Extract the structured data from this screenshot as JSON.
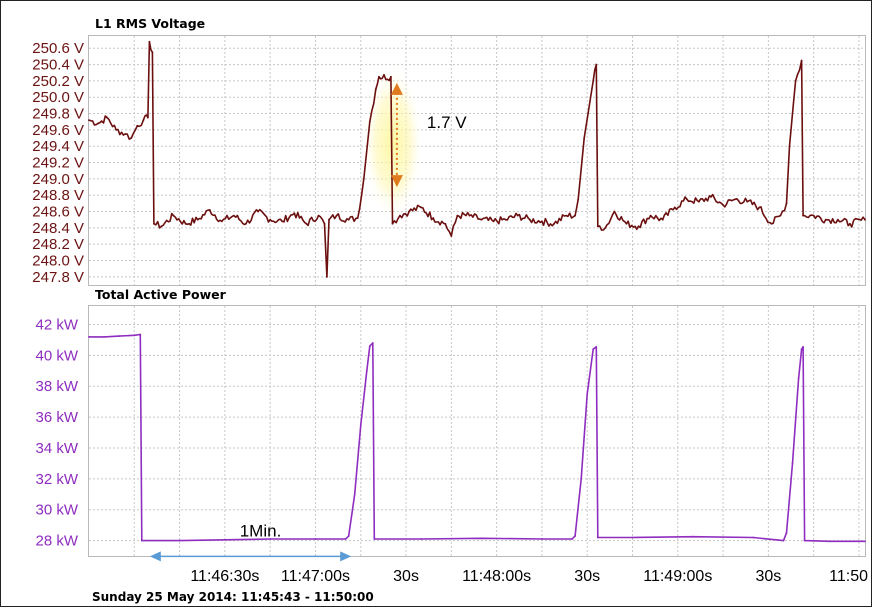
{
  "chart_data": [
    {
      "type": "line",
      "title": "L1 RMS Voltage",
      "y_tick_labels": [
        "250.6 V",
        "250.4 V",
        "250.2 V",
        "250.0 V",
        "249.8 V",
        "249.6 V",
        "249.4 V",
        "249.2 V",
        "249.0 V",
        "248.8 V",
        "248.6 V",
        "248.4 V",
        "248.2 V",
        "248.0 V",
        "247.8 V"
      ],
      "ylim": [
        247.7,
        250.75
      ],
      "x_tick_labels": [
        "11:46:30s",
        "11:47:00s",
        "30s",
        "11:48:00s",
        "30s",
        "11:49:00s",
        "30s",
        "11:50"
      ],
      "x_tick_times": [
        45,
        75,
        105,
        135,
        165,
        195,
        225,
        255
      ],
      "xlim": [
        0,
        257
      ],
      "grid": true,
      "line_color": "#6b0f0f",
      "series": [
        {
          "points": [
            [
              0,
              249.72
            ],
            [
              3,
              249.68
            ],
            [
              6,
              249.75
            ],
            [
              9,
              249.6
            ],
            [
              12,
              249.55
            ],
            [
              14,
              249.5
            ],
            [
              16,
              249.65
            ],
            [
              18,
              249.72
            ],
            [
              19.5,
              249.75
            ],
            [
              20,
              250.68
            ],
            [
              21,
              250.55
            ],
            [
              21.5,
              248.45
            ],
            [
              24,
              248.42
            ],
            [
              28,
              248.55
            ],
            [
              32,
              248.45
            ],
            [
              36,
              248.5
            ],
            [
              40,
              248.62
            ],
            [
              44,
              248.48
            ],
            [
              48,
              248.55
            ],
            [
              52,
              248.45
            ],
            [
              56,
              248.6
            ],
            [
              60,
              248.5
            ],
            [
              64,
              248.48
            ],
            [
              68,
              248.58
            ],
            [
              72,
              248.45
            ],
            [
              76,
              248.55
            ],
            [
              78,
              248.45
            ],
            [
              78.8,
              247.8
            ],
            [
              79.5,
              248.5
            ],
            [
              82,
              248.55
            ],
            [
              86,
              248.5
            ],
            [
              89,
              248.52
            ],
            [
              91,
              249.0
            ],
            [
              93,
              249.7
            ],
            [
              95,
              250.1
            ],
            [
              96,
              250.25
            ],
            [
              100,
              250.25
            ],
            [
              100.5,
              248.45
            ],
            [
              103,
              248.55
            ],
            [
              106,
              248.6
            ],
            [
              110,
              248.65
            ],
            [
              114,
              248.52
            ],
            [
              118,
              248.45
            ],
            [
              120,
              248.3
            ],
            [
              122,
              248.55
            ],
            [
              126,
              248.55
            ],
            [
              130,
              248.5
            ],
            [
              134,
              248.48
            ],
            [
              138,
              248.5
            ],
            [
              142,
              248.55
            ],
            [
              146,
              248.5
            ],
            [
              150,
              248.48
            ],
            [
              154,
              248.45
            ],
            [
              158,
              248.55
            ],
            [
              161,
              248.55
            ],
            [
              162,
              248.75
            ],
            [
              164,
              249.5
            ],
            [
              167,
              250.2
            ],
            [
              168,
              250.4
            ],
            [
              168.5,
              248.42
            ],
            [
              171,
              248.4
            ],
            [
              174,
              248.6
            ],
            [
              178,
              248.45
            ],
            [
              182,
              248.42
            ],
            [
              186,
              248.55
            ],
            [
              190,
              248.5
            ],
            [
              194,
              248.65
            ],
            [
              198,
              248.75
            ],
            [
              202,
              248.72
            ],
            [
              206,
              248.78
            ],
            [
              210,
              248.68
            ],
            [
              214,
              248.75
            ],
            [
              218,
              248.72
            ],
            [
              222,
              248.65
            ],
            [
              226,
              248.45
            ],
            [
              229,
              248.55
            ],
            [
              231,
              248.7
            ],
            [
              232,
              249.4
            ],
            [
              234,
              250.2
            ],
            [
              236,
              250.45
            ],
            [
              236.5,
              248.55
            ],
            [
              240,
              248.55
            ],
            [
              244,
              248.5
            ],
            [
              248,
              248.5
            ],
            [
              252,
              248.45
            ],
            [
              257,
              248.5
            ]
          ]
        }
      ],
      "annotation": {
        "label": "1.7 V",
        "from_y": 250.2,
        "to_y": 248.85,
        "time": 98
      }
    },
    {
      "type": "line",
      "title": "Total Active Power",
      "y_tick_labels": [
        "42 kW",
        "40 kW",
        "38 kW",
        "36 kW",
        "34 kW",
        "32 kW",
        "30 kW",
        "28 kW"
      ],
      "ylim": [
        27.0,
        43.2
      ],
      "x_tick_labels": [
        "11:46:30s",
        "11:47:00s",
        "30s",
        "11:48:00s",
        "30s",
        "11:49:00s",
        "30s",
        "11:50"
      ],
      "x_tick_times": [
        45,
        75,
        105,
        135,
        165,
        195,
        225,
        255
      ],
      "xlim": [
        0,
        257
      ],
      "grid": true,
      "line_color": "#8e2dbf",
      "series": [
        {
          "points": [
            [
              0,
              41.2
            ],
            [
              5,
              41.2
            ],
            [
              10,
              41.25
            ],
            [
              15,
              41.3
            ],
            [
              17,
              41.35
            ],
            [
              17.5,
              28.0
            ],
            [
              30,
              28.0
            ],
            [
              45,
              28.05
            ],
            [
              60,
              28.1
            ],
            [
              75,
              28.1
            ],
            [
              85,
              28.1
            ],
            [
              86,
              28.3
            ],
            [
              88,
              31.0
            ],
            [
              90,
              35.5
            ],
            [
              92,
              39.0
            ],
            [
              93,
              40.6
            ],
            [
              94,
              40.8
            ],
            [
              94.5,
              28.1
            ],
            [
              110,
              28.1
            ],
            [
              130,
              28.15
            ],
            [
              150,
              28.1
            ],
            [
              160,
              28.1
            ],
            [
              161,
              28.3
            ],
            [
              163,
              32.0
            ],
            [
              165,
              37.5
            ],
            [
              167,
              40.4
            ],
            [
              168,
              40.55
            ],
            [
              168.5,
              28.2
            ],
            [
              180,
              28.2
            ],
            [
              200,
              28.25
            ],
            [
              220,
              28.2
            ],
            [
              230,
              28.0
            ],
            [
              231,
              28.5
            ],
            [
              233,
              33.0
            ],
            [
              235,
              38.5
            ],
            [
              236,
              40.4
            ],
            [
              236.5,
              40.55
            ],
            [
              237,
              28.0
            ],
            [
              245,
              27.95
            ],
            [
              257,
              27.95
            ]
          ]
        }
      ],
      "annotation": {
        "label": "1Min.",
        "from_x": 17.5,
        "to_x": 87.5,
        "y": 27.3
      }
    }
  ],
  "footer": {
    "date_range": "Sunday 25 May 2014: 11:45:43 - 11:50:00"
  }
}
